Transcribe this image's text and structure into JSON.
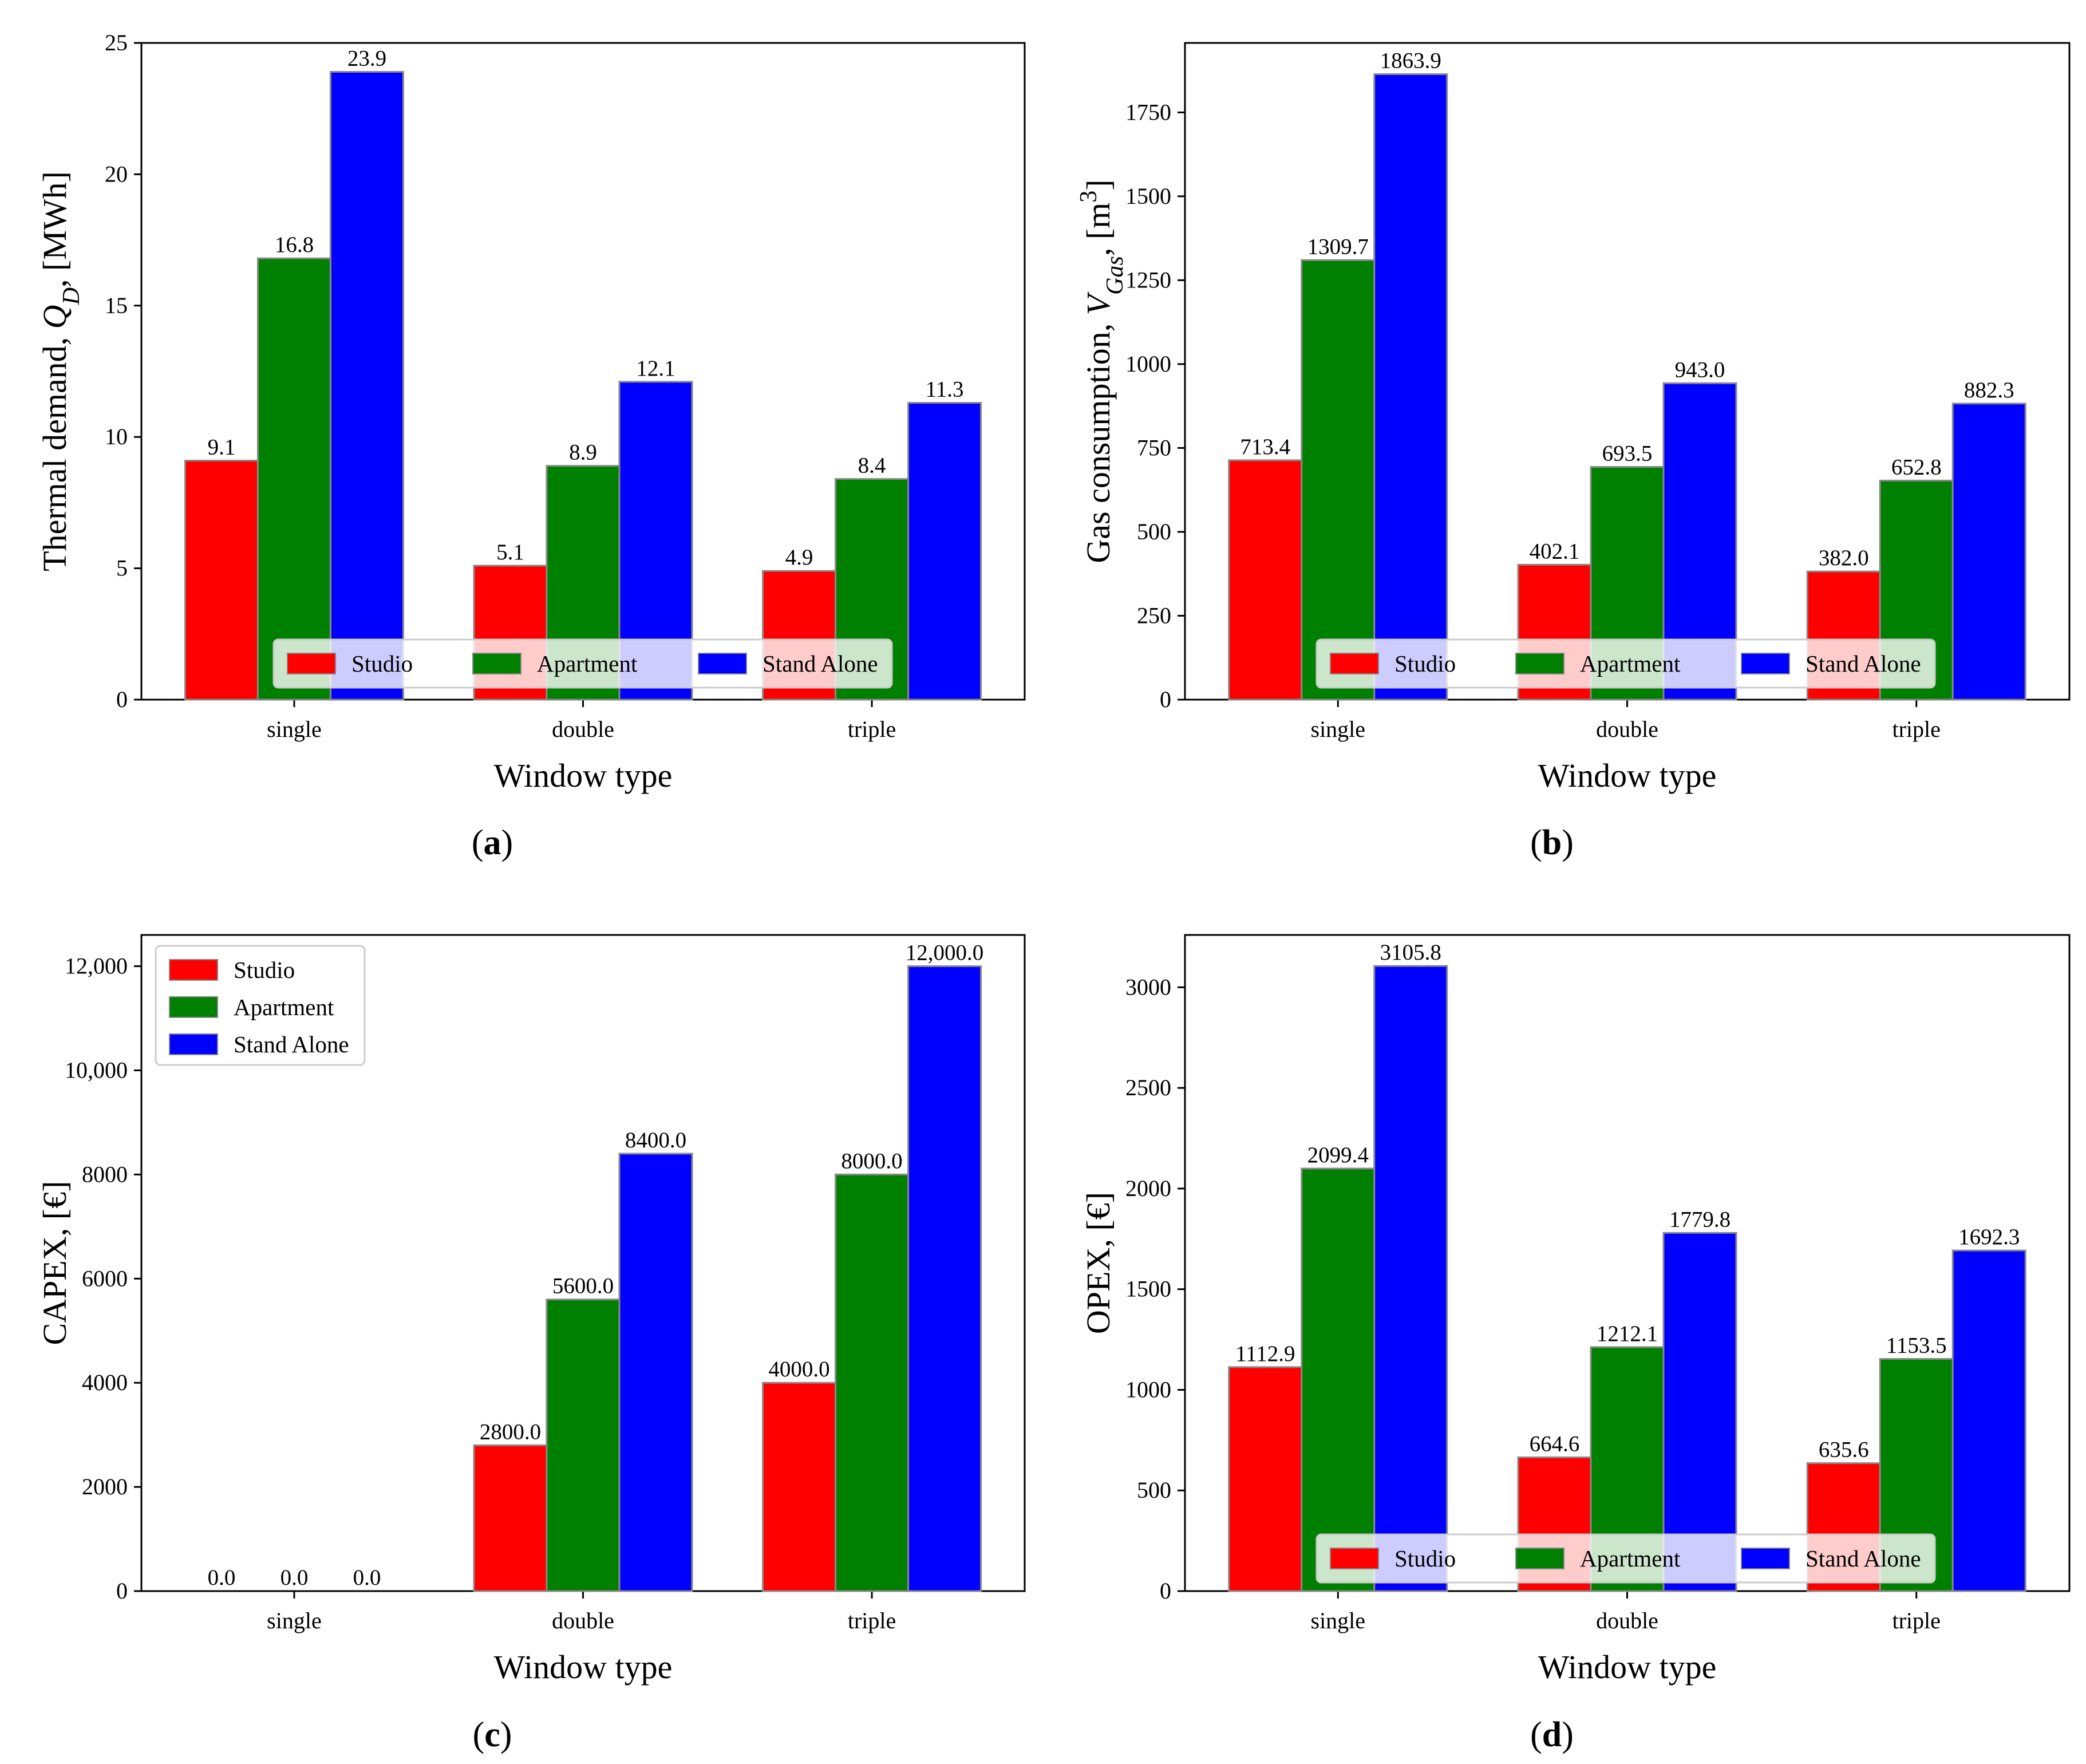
{
  "legend_labels": [
    "Studio",
    "Apartment",
    "Stand Alone"
  ],
  "series_colors": [
    "#ff0000",
    "#008000",
    "#0000ff"
  ],
  "chart_data": [
    {
      "type": "bar",
      "panel": "a",
      "title": "",
      "xlabel": "Window type",
      "ylabel_prefix": "Thermal demand, ",
      "ylabel_symbol": "Q",
      "ylabel_subscript": "D",
      "ylabel_suffix": ", [MWh]",
      "categories": [
        "single",
        "double",
        "triple"
      ],
      "series": [
        {
          "name": "Studio",
          "values": [
            9.1,
            5.1,
            4.9
          ],
          "labels": [
            "9.1",
            "5.1",
            "4.9"
          ]
        },
        {
          "name": "Apartment",
          "values": [
            16.8,
            8.9,
            8.4
          ],
          "labels": [
            "16.8",
            "8.9",
            "8.4"
          ]
        },
        {
          "name": "Stand Alone",
          "values": [
            23.9,
            12.1,
            11.3
          ],
          "labels": [
            "23.9",
            "12.1",
            "11.3"
          ]
        }
      ],
      "ylim": [
        0,
        25
      ],
      "yticks": [
        0,
        5,
        10,
        15,
        20,
        25
      ],
      "ytick_labels": [
        "0",
        "5",
        "10",
        "15",
        "20",
        "25"
      ],
      "legend": "lower-center-horizontal"
    },
    {
      "type": "bar",
      "panel": "b",
      "title": "",
      "xlabel": "Window type",
      "ylabel_prefix": "Gas consumption, ",
      "ylabel_symbol": "V",
      "ylabel_subscript": "Gas",
      "ylabel_suffix": ", [m",
      "ylabel_superscript": "3",
      "ylabel_close": "]",
      "categories": [
        "single",
        "double",
        "triple"
      ],
      "series": [
        {
          "name": "Studio",
          "values": [
            713.4,
            402.1,
            382.0
          ],
          "labels": [
            "713.4",
            "402.1",
            "382.0"
          ]
        },
        {
          "name": "Apartment",
          "values": [
            1309.7,
            693.5,
            652.8
          ],
          "labels": [
            "1309.7",
            "693.5",
            "652.8"
          ]
        },
        {
          "name": "Stand Alone",
          "values": [
            1863.9,
            943.0,
            882.3
          ],
          "labels": [
            "1863.9",
            "943.0",
            "882.3"
          ]
        }
      ],
      "ylim": [
        0,
        1957
      ],
      "yticks": [
        0,
        250,
        500,
        750,
        1000,
        1250,
        1500,
        1750
      ],
      "ytick_labels": [
        "0",
        "250",
        "500",
        "750",
        "1000",
        "1250",
        "1500",
        "1750"
      ],
      "legend": "lower-center-horizontal"
    },
    {
      "type": "bar",
      "panel": "c",
      "title": "",
      "xlabel": "Window type",
      "ylabel_prefix": "CAPEX, [€]",
      "categories": [
        "single",
        "double",
        "triple"
      ],
      "series": [
        {
          "name": "Studio",
          "values": [
            0.0,
            2800.0,
            4000.0
          ],
          "labels": [
            "0.0",
            "2800.0",
            "4000.0"
          ]
        },
        {
          "name": "Apartment",
          "values": [
            0.0,
            5600.0,
            8000.0
          ],
          "labels": [
            "0.0",
            "5600.0",
            "8000.0"
          ]
        },
        {
          "name": "Stand Alone",
          "values": [
            0.0,
            8400.0,
            12000.0
          ],
          "labels": [
            "0.0",
            "8400.0",
            "12,000.0"
          ]
        }
      ],
      "ylim": [
        0,
        12600
      ],
      "yticks": [
        0,
        2000,
        4000,
        6000,
        8000,
        10000,
        12000
      ],
      "ytick_labels": [
        "0",
        "2000",
        "4000",
        "6000",
        "8000",
        "10,000",
        "12,000"
      ],
      "legend": "upper-left-vertical"
    },
    {
      "type": "bar",
      "panel": "d",
      "title": "",
      "xlabel": "Window type",
      "ylabel_prefix": "OPEX, [€]",
      "categories": [
        "single",
        "double",
        "triple"
      ],
      "series": [
        {
          "name": "Studio",
          "values": [
            1112.9,
            664.6,
            635.6
          ],
          "labels": [
            "1112.9",
            "664.6",
            "635.6"
          ]
        },
        {
          "name": "Apartment",
          "values": [
            2099.4,
            1212.1,
            1153.5
          ],
          "labels": [
            "2099.4",
            "1212.1",
            "1153.5"
          ]
        },
        {
          "name": "Stand Alone",
          "values": [
            3105.8,
            1779.8,
            1692.3
          ],
          "labels": [
            "3105.8",
            "1779.8",
            "1692.3"
          ]
        }
      ],
      "ylim": [
        0,
        3260
      ],
      "yticks": [
        0,
        500,
        1000,
        1500,
        2000,
        2500,
        3000
      ],
      "ytick_labels": [
        "0",
        "500",
        "1000",
        "1500",
        "2000",
        "2500",
        "3000"
      ],
      "legend": "lower-center-horizontal"
    }
  ],
  "captions": [
    {
      "open": "(",
      "letter": "a",
      "close": ")"
    },
    {
      "open": "(",
      "letter": "b",
      "close": ")"
    },
    {
      "open": "(",
      "letter": "c",
      "close": ")"
    },
    {
      "open": "(",
      "letter": "d",
      "close": ")"
    }
  ]
}
